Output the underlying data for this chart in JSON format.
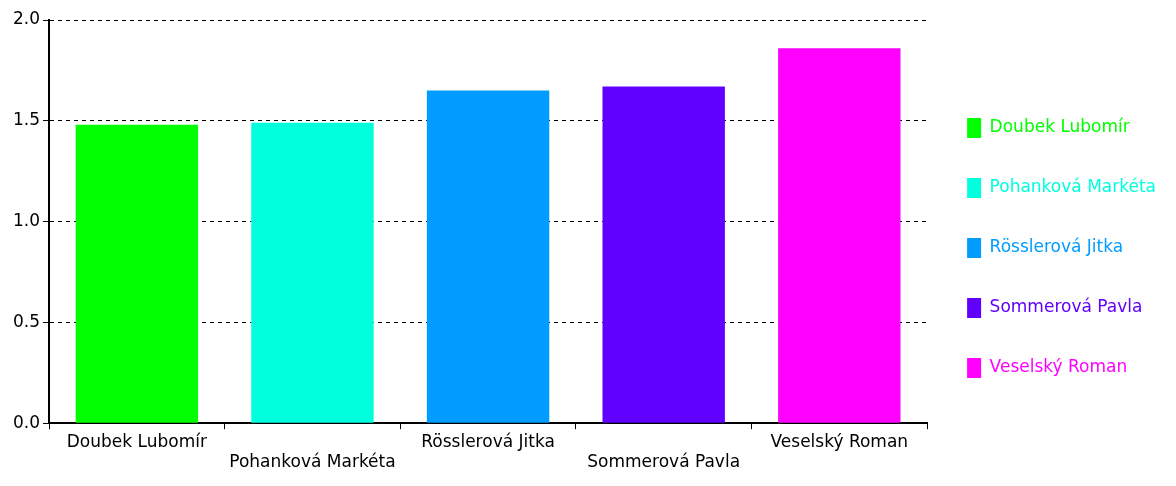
{
  "chart_data": {
    "type": "bar",
    "categories": [
      "Doubek Lubomír",
      "Pohanková Markéta",
      "Rösslerová Jitka",
      "Sommerová Pavla",
      "Veselský Roman"
    ],
    "series": [
      {
        "name": "Doubek Lubomír",
        "color": "#00ff00",
        "values": [
          1.48,
          null,
          null,
          null,
          null
        ]
      },
      {
        "name": "Pohanková Markéta",
        "color": "#00ffdd",
        "values": [
          null,
          1.49,
          null,
          null,
          null
        ]
      },
      {
        "name": "Rösslerová Jitka",
        "color": "#009cff",
        "values": [
          null,
          null,
          1.65,
          null,
          null
        ]
      },
      {
        "name": "Sommerová Pavla",
        "color": "#6000ff",
        "values": [
          null,
          null,
          null,
          1.67,
          null
        ]
      },
      {
        "name": "Veselský Roman",
        "color": "#ff00ff",
        "values": [
          null,
          null,
          null,
          null,
          1.86
        ]
      }
    ],
    "ylim": [
      0,
      2
    ],
    "yticks": [
      {
        "value": 0,
        "label": "0.0"
      },
      {
        "value": 0.5,
        "label": "0.5"
      },
      {
        "value": 1,
        "label": "1.0"
      },
      {
        "value": 1.5,
        "label": "1.5"
      },
      {
        "value": 2,
        "label": "2.0"
      }
    ],
    "grid": "y",
    "legend": "right"
  }
}
